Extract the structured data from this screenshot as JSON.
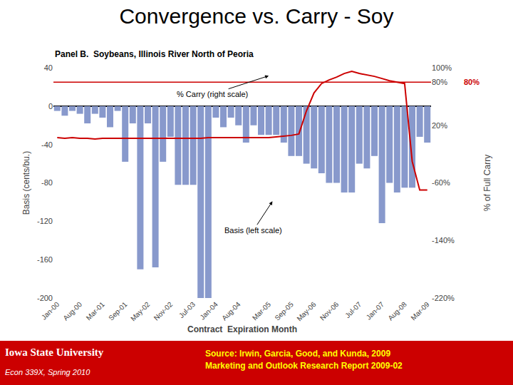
{
  "chart_data": {
    "type": "bar_line",
    "title": "Convergence vs. Carry - Soy",
    "subtitle": "Panel B.  Soybeans, Illinois River North of Peoria",
    "xlabel": "Contract  Expiration Month",
    "ylabel": "Basis (cents/bu.)",
    "y2label": "% of Full Carry",
    "categories": [
      "Jan-00",
      null,
      null,
      "Aug-00",
      null,
      null,
      "Mar-01",
      null,
      null,
      "Sep-01",
      null,
      null,
      "May-02",
      null,
      null,
      "Nov-02",
      null,
      null,
      "Jul-03",
      null,
      null,
      "Jan-04",
      null,
      null,
      "Aug-04",
      null,
      null,
      null,
      "Mar-05",
      null,
      null,
      "Sep-05",
      null,
      null,
      "May-06",
      null,
      null,
      "Nov-06",
      null,
      null,
      "Jul-07",
      null,
      null,
      "Jan-07",
      null,
      null,
      "Aug-08",
      null,
      null,
      "Mar-09"
    ],
    "series": [
      {
        "type": "bar",
        "color": "#8899cc",
        "axis": "y",
        "values": [
          -5,
          -10,
          -5,
          -8,
          -18,
          -8,
          -12,
          -22,
          -5,
          -58,
          -18,
          -170,
          -18,
          -168,
          -58,
          -32,
          -82,
          -82,
          -82,
          -200,
          -200,
          -12,
          -22,
          -12,
          -20,
          -38,
          -20,
          -30,
          -30,
          -30,
          -38,
          -52,
          -52,
          -60,
          -65,
          -70,
          -80,
          -80,
          -90,
          -90,
          -60,
          -65,
          -52,
          -122,
          -80,
          -90,
          -85,
          -85,
          -32,
          -38
        ]
      },
      {
        "type": "line",
        "color": "#cc0000",
        "axis": "y2",
        "values": [
          3,
          2,
          3,
          2,
          2,
          1,
          2,
          2,
          2,
          2,
          2,
          2,
          2,
          2,
          2,
          2,
          2,
          2,
          2,
          2,
          3,
          3,
          3,
          3,
          3,
          3,
          3,
          3,
          3,
          4,
          5,
          6,
          8,
          40,
          65,
          78,
          83,
          87,
          92,
          95,
          92,
          90,
          88,
          85,
          82,
          80,
          78,
          -30,
          -70,
          -70
        ]
      }
    ],
    "ylim": [
      -200,
      40
    ],
    "yticks": [
      40,
      0,
      -40,
      -80,
      -120,
      -160,
      -200
    ],
    "y2lim": [
      -220,
      100
    ],
    "y2ticks": [
      {
        "value": 100,
        "label": "100%"
      },
      {
        "value": 80,
        "label": "80%"
      },
      {
        "value": 20,
        "label": "20%"
      },
      {
        "value": -60,
        "label": "-60%"
      },
      {
        "value": -140,
        "label": "-140%"
      },
      {
        "value": -220,
        "label": "-220%"
      }
    ],
    "grid": false,
    "reference_lines": [
      {
        "value": 80,
        "axis": "y2",
        "label": "80%",
        "color": "#cc0000"
      }
    ],
    "annotations": [
      {
        "text": "% Carry (right scale)"
      },
      {
        "text": "Basis (left scale)"
      }
    ],
    "footer": {
      "color": "#cc0000",
      "texts": [
        {
          "text": "Iowa State University",
          "color": "#ffffff"
        },
        {
          "text": "Econ 339X, Spring 2010",
          "color": "#ffffff"
        },
        {
          "text": "Source: Irwin, Garcia, Good, and Kunda, 2009\nMarketing and Outlook Research Report 2009-02",
          "color": "#ffff00"
        }
      ]
    }
  }
}
